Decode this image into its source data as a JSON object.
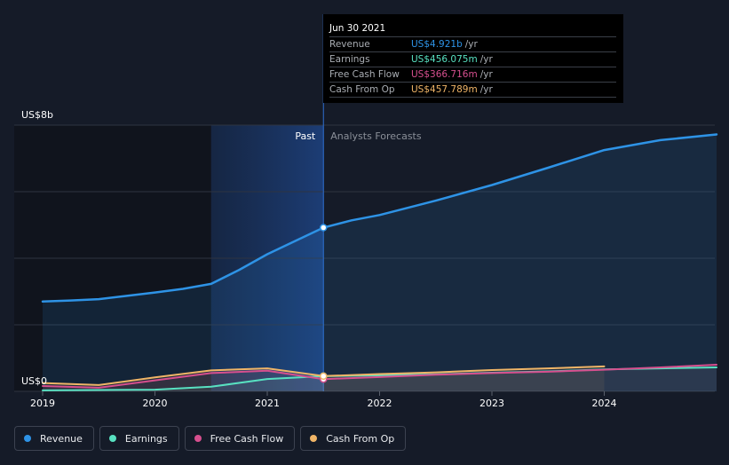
{
  "tooltip": {
    "date": "Jun 30 2021",
    "rows": [
      {
        "label": "Revenue",
        "value": "US$4.921b",
        "unit": "/yr",
        "color": "#2e93e6"
      },
      {
        "label": "Earnings",
        "value": "US$456.075m",
        "unit": "/yr",
        "color": "#58e1c1"
      },
      {
        "label": "Free Cash Flow",
        "value": "US$366.716m",
        "unit": "/yr",
        "color": "#d64f8e"
      },
      {
        "label": "Cash From Op",
        "value": "US$457.789m",
        "unit": "/yr",
        "color": "#f0b567"
      }
    ]
  },
  "legend": [
    {
      "label": "Revenue",
      "color": "#2e93e6"
    },
    {
      "label": "Earnings",
      "color": "#58e1c1"
    },
    {
      "label": "Free Cash Flow",
      "color": "#d64f8e"
    },
    {
      "label": "Cash From Op",
      "color": "#f0b567"
    }
  ],
  "chart_data": {
    "type": "line",
    "y_top_label": "US$8b",
    "y_bottom_label": "US$0",
    "ylim": [
      0,
      8
    ],
    "xlim": [
      2019.0,
      2025.0
    ],
    "x_ticks": [
      "2019",
      "2020",
      "2021",
      "2022",
      "2023",
      "2024"
    ],
    "x_tick_values": [
      2019,
      2020,
      2021,
      2022,
      2023,
      2024
    ],
    "past_label": "Past",
    "forecast_label": "Analysts Forecasts",
    "past_end": 2021.5,
    "grid": true,
    "series": [
      {
        "name": "Revenue",
        "color": "#2e93e6",
        "points": [
          [
            2019.0,
            2.7
          ],
          [
            2019.25,
            2.73
          ],
          [
            2019.5,
            2.77
          ],
          [
            2019.75,
            2.87
          ],
          [
            2020.0,
            2.97
          ],
          [
            2020.25,
            3.08
          ],
          [
            2020.5,
            3.23
          ],
          [
            2020.75,
            3.65
          ],
          [
            2021.0,
            4.12
          ],
          [
            2021.25,
            4.52
          ],
          [
            2021.5,
            4.92
          ],
          [
            2021.75,
            5.14
          ],
          [
            2022.0,
            5.3
          ],
          [
            2022.5,
            5.73
          ],
          [
            2023.0,
            6.2
          ],
          [
            2023.5,
            6.72
          ],
          [
            2024.0,
            7.25
          ],
          [
            2024.5,
            7.55
          ],
          [
            2025.0,
            7.72
          ]
        ]
      },
      {
        "name": "Earnings",
        "color": "#58e1c1",
        "points": [
          [
            2019.0,
            0.03
          ],
          [
            2019.5,
            0.04
          ],
          [
            2020.0,
            0.05
          ],
          [
            2020.5,
            0.14
          ],
          [
            2021.0,
            0.37
          ],
          [
            2021.5,
            0.456
          ],
          [
            2022.0,
            0.48
          ],
          [
            2022.5,
            0.51
          ],
          [
            2023.0,
            0.56
          ],
          [
            2023.5,
            0.6
          ],
          [
            2024.0,
            0.66
          ],
          [
            2024.5,
            0.69
          ],
          [
            2025.0,
            0.72
          ]
        ]
      },
      {
        "name": "Free Cash Flow",
        "color": "#d64f8e",
        "points": [
          [
            2019.0,
            0.16
          ],
          [
            2019.5,
            0.11
          ],
          [
            2020.0,
            0.33
          ],
          [
            2020.5,
            0.55
          ],
          [
            2021.0,
            0.62
          ],
          [
            2021.5,
            0.367
          ],
          [
            2022.0,
            0.43
          ],
          [
            2022.5,
            0.5
          ],
          [
            2023.0,
            0.55
          ],
          [
            2023.5,
            0.59
          ],
          [
            2024.0,
            0.65
          ],
          [
            2024.5,
            0.72
          ],
          [
            2025.0,
            0.8
          ]
        ]
      },
      {
        "name": "Cash From Op",
        "color": "#f0b567",
        "points": [
          [
            2019.0,
            0.25
          ],
          [
            2019.5,
            0.19
          ],
          [
            2020.0,
            0.42
          ],
          [
            2020.5,
            0.63
          ],
          [
            2021.0,
            0.69
          ],
          [
            2021.5,
            0.458
          ],
          [
            2022.0,
            0.52
          ],
          [
            2022.5,
            0.57
          ],
          [
            2023.0,
            0.64
          ],
          [
            2023.5,
            0.69
          ],
          [
            2024.0,
            0.75
          ]
        ]
      }
    ]
  }
}
